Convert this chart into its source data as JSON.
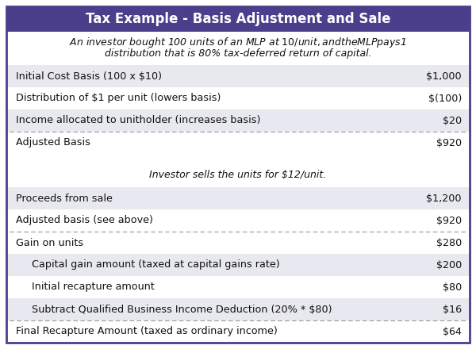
{
  "title": "Tax Example - Basis Adjustment and Sale",
  "title_bg_color": "#4B3F8C",
  "title_text_color": "#FFFFFF",
  "subtitle_line1": "An investor bought 100 units of an MLP at $10/unit, and the MLP pays $1",
  "subtitle_line2": "distribution that is 80% tax-deferred return of capital.",
  "mid_italic": "Investor sells the units for $12/unit.",
  "bg_color": "#FFFFFF",
  "table_bg": "#FFFFFF",
  "row_bg_shaded": "#E8E8F0",
  "border_color": "#4B3F8C",
  "section1_rows": [
    {
      "label": "Initial Cost Basis (100 x $10)",
      "value": "$1,000",
      "shaded": true,
      "indent": false,
      "bold": false,
      "dashed_bottom": false
    },
    {
      "label": "Distribution of $1 per unit (lowers basis)",
      "value": "$(100)",
      "shaded": false,
      "indent": false,
      "bold": false,
      "dashed_bottom": false
    },
    {
      "label": "Income allocated to unitholder (increases basis)",
      "value": "$20",
      "shaded": true,
      "indent": false,
      "bold": false,
      "dashed_bottom": true
    },
    {
      "label": "Adjusted Basis",
      "value": "$920",
      "shaded": false,
      "indent": false,
      "bold": false,
      "dashed_bottom": false
    }
  ],
  "section2_rows": [
    {
      "label": "Proceeds from sale",
      "value": "$1,200",
      "shaded": true,
      "indent": false,
      "bold": false,
      "dashed_bottom": false
    },
    {
      "label": "Adjusted basis (see above)",
      "value": "$920",
      "shaded": false,
      "indent": false,
      "bold": false,
      "dashed_bottom": true
    },
    {
      "label": "Gain on units",
      "value": "$280",
      "shaded": false,
      "indent": false,
      "bold": false,
      "dashed_bottom": false
    },
    {
      "label": "Capital gain amount (taxed at capital gains rate)",
      "value": "$200",
      "shaded": true,
      "indent": true,
      "bold": false,
      "dashed_bottom": false
    },
    {
      "label": "Initial recapture amount",
      "value": "$80",
      "shaded": false,
      "indent": true,
      "bold": false,
      "dashed_bottom": false
    },
    {
      "label": "Subtract Qualified Business Income Deduction (20% * $80)",
      "value": "$16",
      "shaded": true,
      "indent": true,
      "bold": false,
      "dashed_bottom": true
    },
    {
      "label": "Final Recapture Amount (taxed as ordinary income)",
      "value": "$64",
      "shaded": false,
      "indent": false,
      "bold": false,
      "dashed_bottom": false
    }
  ],
  "font_size": 9.2,
  "title_font_size": 12.0
}
